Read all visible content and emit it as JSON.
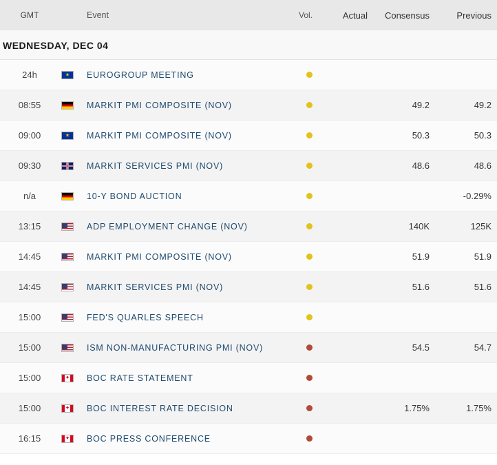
{
  "columns": {
    "gmt": "GMT",
    "event": "Event",
    "vol": "Vol.",
    "actual": "Actual",
    "consensus": "Consensus",
    "previous": "Previous"
  },
  "colors": {
    "header_bg": "#e8e8e8",
    "link": "#1f4a6e",
    "row_odd": "#fbfbfb",
    "row_even": "#f3f3f3",
    "vol_medium": "#e3c31b",
    "vol_high": "#b24a3a"
  },
  "day_header": "WEDNESDAY, DEC 04",
  "rows": [
    {
      "gmt": "24h",
      "flag": "eu",
      "event": "EUROGROUP MEETING",
      "vol": "medium",
      "actual": "",
      "consensus": "",
      "previous": ""
    },
    {
      "gmt": "08:55",
      "flag": "de",
      "event": "MARKIT PMI COMPOSITE (NOV)",
      "vol": "medium",
      "actual": "",
      "consensus": "49.2",
      "previous": "49.2"
    },
    {
      "gmt": "09:00",
      "flag": "eu",
      "event": "MARKIT PMI COMPOSITE (NOV)",
      "vol": "medium",
      "actual": "",
      "consensus": "50.3",
      "previous": "50.3"
    },
    {
      "gmt": "09:30",
      "flag": "gb",
      "event": "MARKIT SERVICES PMI (NOV)",
      "vol": "medium",
      "actual": "",
      "consensus": "48.6",
      "previous": "48.6"
    },
    {
      "gmt": "n/a",
      "flag": "de",
      "event": "10-Y BOND AUCTION",
      "vol": "medium",
      "actual": "",
      "consensus": "",
      "previous": "-0.29%"
    },
    {
      "gmt": "13:15",
      "flag": "us",
      "event": "ADP EMPLOYMENT CHANGE (NOV)",
      "vol": "medium",
      "actual": "",
      "consensus": "140K",
      "previous": "125K"
    },
    {
      "gmt": "14:45",
      "flag": "us",
      "event": "MARKIT PMI COMPOSITE (NOV)",
      "vol": "medium",
      "actual": "",
      "consensus": "51.9",
      "previous": "51.9"
    },
    {
      "gmt": "14:45",
      "flag": "us",
      "event": "MARKIT SERVICES PMI (NOV)",
      "vol": "medium",
      "actual": "",
      "consensus": "51.6",
      "previous": "51.6"
    },
    {
      "gmt": "15:00",
      "flag": "us",
      "event": "FED'S QUARLES SPEECH",
      "vol": "medium",
      "actual": "",
      "consensus": "",
      "previous": ""
    },
    {
      "gmt": "15:00",
      "flag": "us",
      "event": "ISM NON-MANUFACTURING PMI (NOV)",
      "vol": "high",
      "actual": "",
      "consensus": "54.5",
      "previous": "54.7"
    },
    {
      "gmt": "15:00",
      "flag": "ca",
      "event": "BOC RATE STATEMENT",
      "vol": "high",
      "actual": "",
      "consensus": "",
      "previous": ""
    },
    {
      "gmt": "15:00",
      "flag": "ca",
      "event": "BOC INTEREST RATE DECISION",
      "vol": "high",
      "actual": "",
      "consensus": "1.75%",
      "previous": "1.75%"
    },
    {
      "gmt": "16:15",
      "flag": "ca",
      "event": "BOC PRESS CONFERENCE",
      "vol": "high",
      "actual": "",
      "consensus": "",
      "previous": ""
    }
  ]
}
